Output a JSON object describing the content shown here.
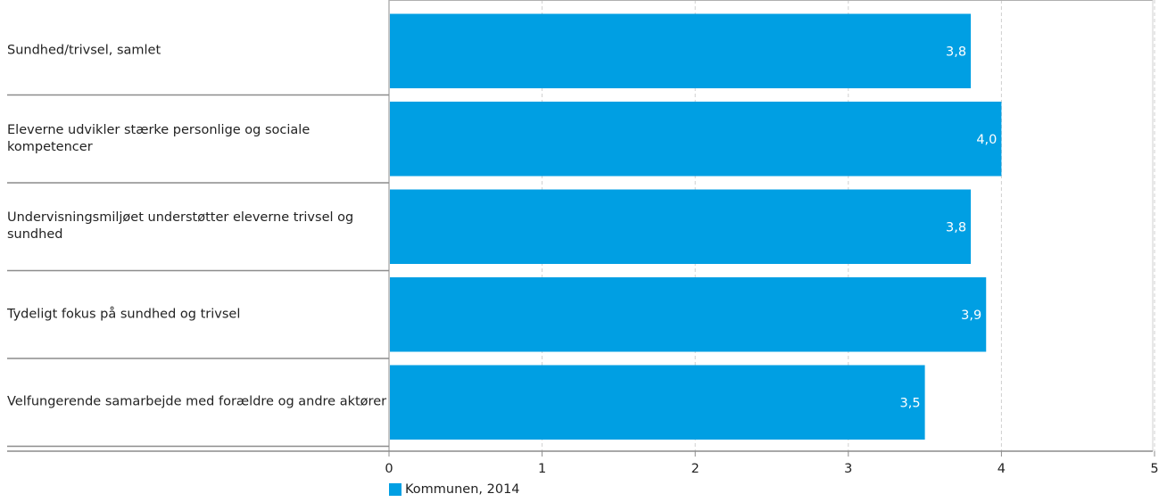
{
  "chart_data": {
    "type": "bar",
    "orientation": "horizontal",
    "categories": [
      "Sundhed/trivsel, samlet",
      "Eleverne udvikler stærke personlige og sociale kompetencer",
      "Undervisningsmiljøet understøtter eleverne trivsel og sundhed",
      "Tydeligt fokus på sundhed og trivsel",
      "Velfungerende samarbejde med forældre og andre aktører"
    ],
    "series": [
      {
        "name": "Kommunen, 2014",
        "values": [
          3.8,
          4.0,
          3.8,
          3.9,
          3.5
        ],
        "labels": [
          "3,8",
          "4,0",
          "3,8",
          "3,9",
          "3,5"
        ]
      }
    ],
    "x_ticks": [
      0,
      1,
      2,
      3,
      4,
      5
    ],
    "xlim": [
      0,
      5
    ],
    "grid": "vertical dashed",
    "legend_position": "bottom-left",
    "bar_color": "#009FE3"
  }
}
